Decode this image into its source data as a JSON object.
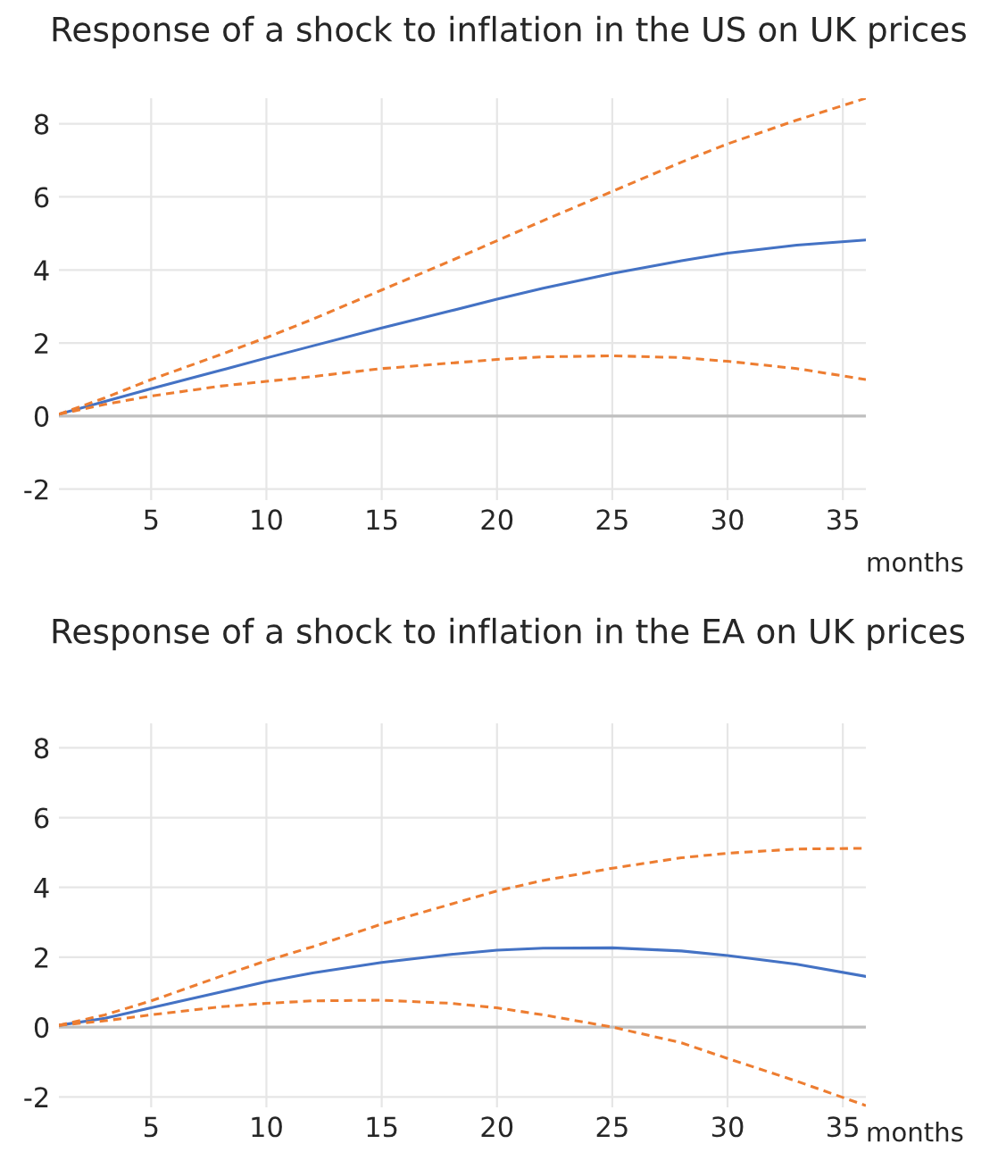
{
  "chart_data": [
    {
      "type": "line",
      "title": "Response of a shock to inflation in the US on UK prices",
      "xlabel": "months",
      "x": [
        1,
        3,
        5,
        8,
        10,
        12,
        15,
        18,
        20,
        22,
        25,
        28,
        30,
        33,
        36
      ],
      "series": [
        {
          "color": "#4472c4",
          "line_style": "solid",
          "values": [
            0.05,
            0.4,
            0.75,
            1.25,
            1.59,
            1.92,
            2.41,
            2.88,
            3.2,
            3.5,
            3.9,
            4.25,
            4.46,
            4.68,
            4.82
          ]
        },
        {
          "color": "#ed7d31",
          "line_style": "dashed",
          "values": [
            0.05,
            0.5,
            1.0,
            1.68,
            2.15,
            2.65,
            3.45,
            4.25,
            4.8,
            5.35,
            6.15,
            6.95,
            7.45,
            8.1,
            8.7
          ]
        },
        {
          "color": "#ed7d31",
          "line_style": "dashed",
          "values": [
            0.05,
            0.32,
            0.55,
            0.82,
            0.95,
            1.08,
            1.3,
            1.45,
            1.55,
            1.62,
            1.65,
            1.6,
            1.5,
            1.3,
            1.0
          ]
        }
      ],
      "xlim": [
        1,
        36
      ],
      "xticks": [
        5,
        10,
        15,
        20,
        25,
        30,
        35
      ],
      "ylim": [
        -2.3,
        8.7
      ],
      "yticks": [
        -2,
        0,
        2,
        4,
        6,
        8
      ],
      "grid": true,
      "legend": false,
      "ref_lines": [
        {
          "axis": "y",
          "value": 0,
          "color": "#bfbfbf"
        }
      ]
    },
    {
      "type": "line",
      "title": "Response of a shock to inflation in the EA on UK prices",
      "xlabel": "months",
      "x": [
        1,
        3,
        5,
        8,
        10,
        12,
        15,
        18,
        20,
        22,
        25,
        28,
        30,
        33,
        36
      ],
      "series": [
        {
          "color": "#4472c4",
          "line_style": "solid",
          "values": [
            0.05,
            0.25,
            0.55,
            1.0,
            1.3,
            1.55,
            1.85,
            2.08,
            2.2,
            2.26,
            2.27,
            2.18,
            2.05,
            1.8,
            1.45
          ]
        },
        {
          "color": "#ed7d31",
          "line_style": "dashed",
          "values": [
            0.05,
            0.35,
            0.75,
            1.45,
            1.9,
            2.3,
            2.95,
            3.52,
            3.9,
            4.2,
            4.55,
            4.85,
            4.98,
            5.1,
            5.12
          ]
        },
        {
          "color": "#ed7d31",
          "line_style": "dashed",
          "values": [
            0.05,
            0.18,
            0.35,
            0.58,
            0.68,
            0.75,
            0.77,
            0.68,
            0.55,
            0.35,
            0.0,
            -0.45,
            -0.9,
            -1.55,
            -2.25
          ]
        }
      ],
      "xlim": [
        1,
        36
      ],
      "xticks": [
        5,
        10,
        15,
        20,
        25,
        30,
        35
      ],
      "ylim": [
        -2.3,
        8.7
      ],
      "yticks": [
        -2,
        0,
        2,
        4,
        6,
        8
      ],
      "grid": true,
      "legend": false,
      "ref_lines": [
        {
          "axis": "y",
          "value": 0,
          "color": "#bfbfbf"
        }
      ]
    }
  ]
}
